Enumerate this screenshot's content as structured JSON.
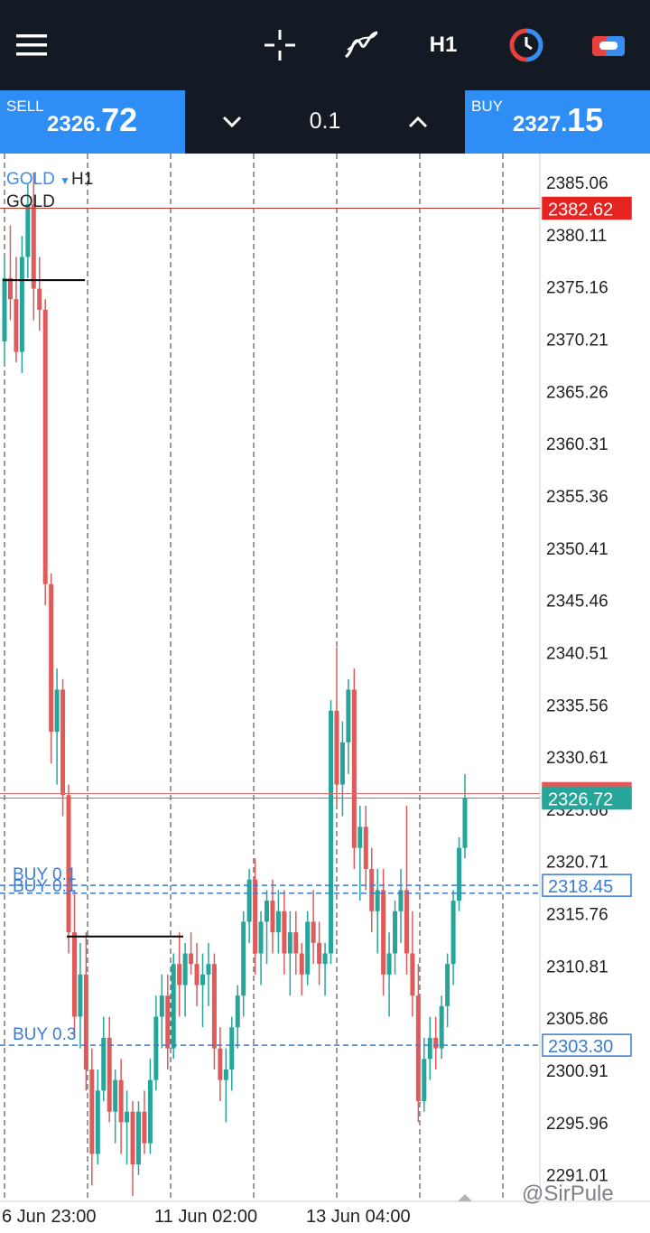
{
  "toolbar": {
    "menu_icon": "hamburger-menu-icon",
    "crosshair_icon": "crosshair-icon",
    "indicators_icon": "indicators-icon",
    "timeframe": "H1",
    "clock_icon": "clock-icon",
    "trade_icon": "trade-icon"
  },
  "trade": {
    "sell_label": "SELL",
    "sell_price_small": "2326.",
    "sell_price_big": "72",
    "buy_label": "BUY",
    "buy_price_small": "2327.",
    "buy_price_big": "15",
    "lot_size": "0.1"
  },
  "chart_data": {
    "type": "candlestick",
    "symbol": "GOLD",
    "timeframe": "H1",
    "description": "GOLD",
    "y_ticks": [
      "2385.06",
      "2380.11",
      "2375.16",
      "2370.21",
      "2365.26",
      "2360.31",
      "2355.36",
      "2350.41",
      "2345.46",
      "2340.51",
      "2335.56",
      "2330.61",
      "2325.66",
      "2320.71",
      "2315.76",
      "2310.81",
      "2305.86",
      "2300.91",
      "2295.96",
      "2291.01"
    ],
    "x_ticks": [
      "6 Jun 23:00",
      "11 Jun 02:00",
      "13 Jun 04:00"
    ],
    "ylim": [
      2288.5,
      2387.8
    ],
    "price_tags": {
      "high_line": "2382.62",
      "bid": "2326.72",
      "ask": "2327.15",
      "order_1": "2318.45",
      "order_2": "2303.30"
    },
    "orders": [
      {
        "label": "BUY 0.1",
        "price": 2318.45
      },
      {
        "label": "BUY 0.1",
        "price": 2317.7
      },
      {
        "label": "BUY 0.3",
        "price": 2303.3
      }
    ],
    "candles": [
      [
        2370,
        2378,
        2368,
        2376
      ],
      [
        2376,
        2381,
        2372,
        2374
      ],
      [
        2374,
        2378,
        2368,
        2369
      ],
      [
        2369,
        2380,
        2367,
        2378
      ],
      [
        2378,
        2385,
        2376,
        2383
      ],
      [
        2383,
        2386,
        2372,
        2375
      ],
      [
        2375,
        2378,
        2371,
        2373
      ],
      [
        2373,
        2374,
        2345,
        2347
      ],
      [
        2347,
        2348,
        2330,
        2333
      ],
      [
        2333,
        2339,
        2328,
        2337
      ],
      [
        2337,
        2338,
        2325,
        2327
      ],
      [
        2327,
        2328,
        2312,
        2314
      ],
      [
        2314,
        2318,
        2304,
        2306
      ],
      [
        2306,
        2313,
        2303,
        2310
      ],
      [
        2310,
        2314,
        2299,
        2301
      ],
      [
        2301,
        2303,
        2290,
        2293
      ],
      [
        2293,
        2301,
        2292,
        2299
      ],
      [
        2299,
        2306,
        2298,
        2304
      ],
      [
        2304,
        2306,
        2296,
        2297
      ],
      [
        2297,
        2301,
        2294,
        2300
      ],
      [
        2300,
        2302,
        2293,
        2296
      ],
      [
        2296,
        2299,
        2292,
        2297
      ],
      [
        2297,
        2298,
        2289,
        2292
      ],
      [
        2292,
        2298,
        2291,
        2297
      ],
      [
        2297,
        2299,
        2293,
        2294
      ],
      [
        2294,
        2302,
        2293,
        2300
      ],
      [
        2300,
        2308,
        2299,
        2306
      ],
      [
        2306,
        2310,
        2303,
        2308
      ],
      [
        2308,
        2310,
        2301,
        2303
      ],
      [
        2303,
        2312,
        2302,
        2311
      ],
      [
        2311,
        2314,
        2306,
        2309
      ],
      [
        2309,
        2313,
        2306,
        2312
      ],
      [
        2312,
        2314,
        2310,
        2311
      ],
      [
        2311,
        2313,
        2307,
        2309
      ],
      [
        2309,
        2312,
        2305,
        2310
      ],
      [
        2310,
        2313,
        2307,
        2311
      ],
      [
        2311,
        2312,
        2301,
        2303
      ],
      [
        2303,
        2305,
        2298,
        2300
      ],
      [
        2300,
        2303,
        2296,
        2301
      ],
      [
        2301,
        2306,
        2299,
        2305
      ],
      [
        2305,
        2309,
        2303,
        2308
      ],
      [
        2308,
        2316,
        2306,
        2315
      ],
      [
        2315,
        2320,
        2313,
        2319
      ],
      [
        2319,
        2321,
        2310,
        2312
      ],
      [
        2312,
        2316,
        2309,
        2315
      ],
      [
        2315,
        2318,
        2311,
        2317
      ],
      [
        2317,
        2319,
        2312,
        2314
      ],
      [
        2314,
        2318,
        2312,
        2316
      ],
      [
        2316,
        2318,
        2310,
        2312
      ],
      [
        2312,
        2316,
        2308,
        2314
      ],
      [
        2314,
        2316,
        2310,
        2312
      ],
      [
        2312,
        2313,
        2308,
        2310
      ],
      [
        2310,
        2316,
        2309,
        2315
      ],
      [
        2315,
        2318,
        2311,
        2313
      ],
      [
        2313,
        2315,
        2309,
        2311
      ],
      [
        2311,
        2313,
        2308,
        2312
      ],
      [
        2312,
        2336,
        2311,
        2335
      ],
      [
        2335,
        2341,
        2326,
        2328
      ],
      [
        2328,
        2334,
        2325,
        2332
      ],
      [
        2332,
        2338,
        2329,
        2337
      ],
      [
        2337,
        2339,
        2320,
        2322
      ],
      [
        2322,
        2326,
        2317,
        2324
      ],
      [
        2324,
        2326,
        2318,
        2320
      ],
      [
        2320,
        2322,
        2314,
        2316
      ],
      [
        2316,
        2320,
        2312,
        2318
      ],
      [
        2318,
        2320,
        2308,
        2310
      ],
      [
        2310,
        2314,
        2306,
        2312
      ],
      [
        2312,
        2317,
        2310,
        2316
      ],
      [
        2316,
        2320,
        2313,
        2318
      ],
      [
        2318,
        2326,
        2310,
        2312
      ],
      [
        2312,
        2316,
        2306,
        2308
      ],
      [
        2308,
        2311,
        2296,
        2298
      ],
      [
        2298,
        2304,
        2297,
        2302
      ],
      [
        2302,
        2306,
        2300,
        2304
      ],
      [
        2304,
        2306,
        2301,
        2303
      ],
      [
        2303,
        2308,
        2302,
        2307
      ],
      [
        2307,
        2312,
        2305,
        2311
      ],
      [
        2311,
        2318,
        2309,
        2317
      ],
      [
        2317,
        2323,
        2316,
        2322
      ],
      [
        2322,
        2329,
        2321,
        2326.72
      ]
    ]
  },
  "watermark": "@SirPule"
}
